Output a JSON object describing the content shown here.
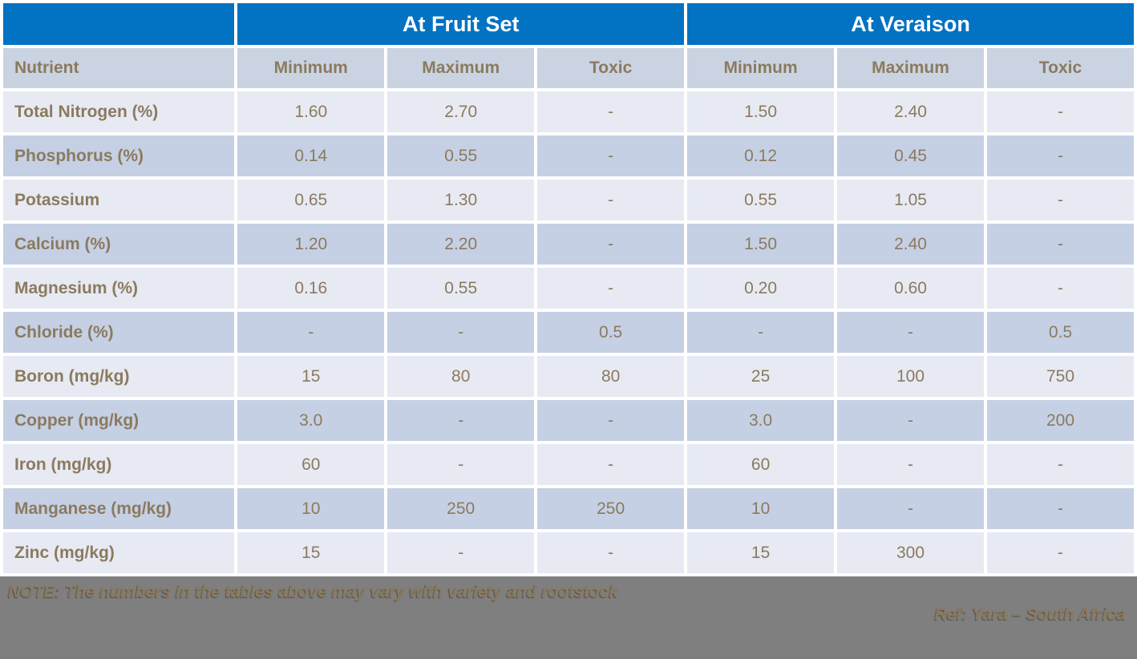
{
  "table": {
    "group_headers": [
      "",
      "At Fruit Set",
      "At Veraison"
    ],
    "column_headers": [
      "Nutrient",
      "Minimum",
      "Maximum",
      "Toxic",
      "Minimum",
      "Maximum",
      "Toxic"
    ],
    "rows": [
      {
        "nutrient": "Total Nitrogen (%)",
        "values": [
          "1.60",
          "2.70",
          "-",
          "1.50",
          "2.40",
          "-"
        ]
      },
      {
        "nutrient": "Phosphorus (%)",
        "values": [
          "0.14",
          "0.55",
          "-",
          "0.12",
          "0.45",
          "-"
        ]
      },
      {
        "nutrient": "Potassium",
        "values": [
          "0.65",
          "1.30",
          "-",
          "0.55",
          "1.05",
          "-"
        ]
      },
      {
        "nutrient": "Calcium (%)",
        "values": [
          "1.20",
          "2.20",
          "-",
          "1.50",
          "2.40",
          "-"
        ]
      },
      {
        "nutrient": "Magnesium (%)",
        "values": [
          "0.16",
          "0.55",
          "-",
          "0.20",
          "0.60",
          "-"
        ]
      },
      {
        "nutrient": "Chloride (%)",
        "values": [
          "-",
          "-",
          "0.5",
          "-",
          "-",
          "0.5"
        ]
      },
      {
        "nutrient": "Boron (mg/kg)",
        "values": [
          "15",
          "80",
          "80",
          "25",
          "100",
          "750"
        ]
      },
      {
        "nutrient": "Copper (mg/kg)",
        "values": [
          "3.0",
          "-",
          "-",
          "3.0",
          "-",
          "200"
        ]
      },
      {
        "nutrient": "Iron (mg/kg)",
        "values": [
          "60",
          "-",
          "-",
          "60",
          "-",
          "-"
        ]
      },
      {
        "nutrient": "Manganese (mg/kg)",
        "values": [
          "10",
          "250",
          "250",
          "10",
          "-",
          "-"
        ]
      },
      {
        "nutrient": "Zinc (mg/kg)",
        "values": [
          "15",
          "-",
          "-",
          "15",
          "300",
          "-"
        ]
      }
    ]
  },
  "footer": {
    "note": "NOTE: The numbers in the tables above may vary with variety and rootstock",
    "ref": "Ref: Yara – South Africa"
  },
  "colors": {
    "accent_blue": "#0272C2",
    "header_bg": "#CAD3E2",
    "row_light": "#E7EAF3",
    "row_dark": "#C5D0E4",
    "text_brown": "#8B7A5E",
    "footer_gray": "#7F7F7F"
  }
}
